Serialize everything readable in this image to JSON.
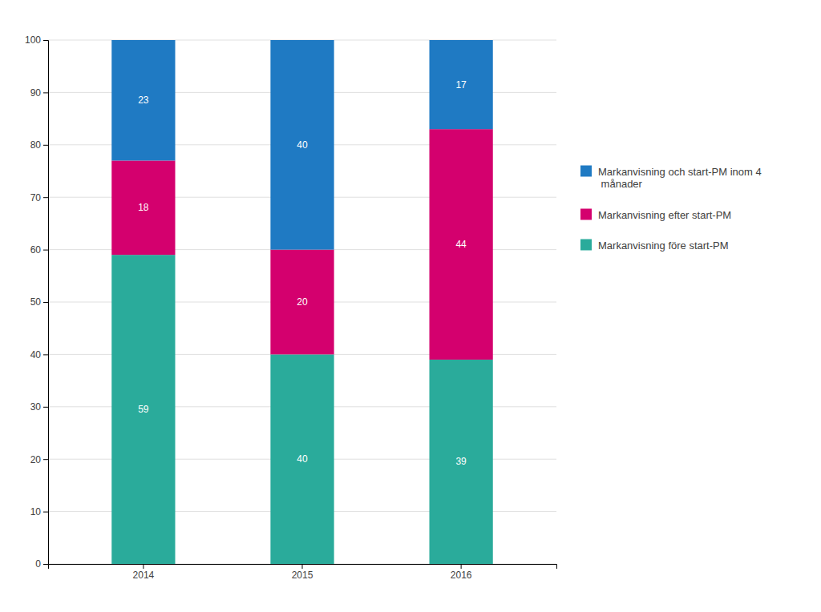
{
  "chart_data": {
    "type": "bar",
    "stacked": true,
    "categories": [
      "2014",
      "2015",
      "2016"
    ],
    "series": [
      {
        "name": "Markanvisning före start-PM",
        "color": "#2aab9b",
        "values": [
          59,
          40,
          39
        ]
      },
      {
        "name": "Markanvisning efter start-PM",
        "color": "#d4006e",
        "values": [
          18,
          20,
          44
        ]
      },
      {
        "name": "Markanvisning och start-PM inom 4\n månader",
        "color": "#1f7ac3",
        "values": [
          23,
          40,
          17
        ]
      }
    ],
    "ylim": [
      0,
      100
    ],
    "yticks": [
      0,
      10,
      20,
      30,
      40,
      50,
      60,
      70,
      80,
      90,
      100
    ],
    "grid": true,
    "data_labels": true,
    "legend": "right"
  }
}
